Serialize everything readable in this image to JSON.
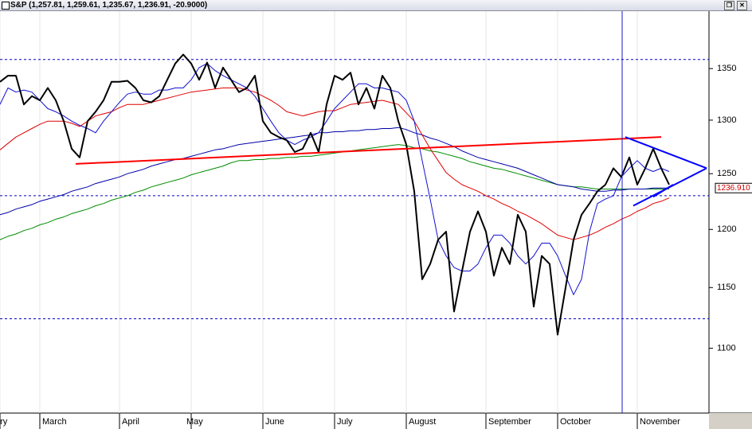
{
  "chart_data": {
    "type": "line",
    "title": "S&P (1,257.81, 1,259.61, 1,235.67, 1,236.91, -20.9000)",
    "log_scale": true,
    "ylim": [
      1049,
      1408
    ],
    "yticks": [
      1100,
      1150,
      1200,
      1250,
      1300,
      1350
    ],
    "grid": true,
    "categories": [
      "ary",
      null,
      null,
      null,
      null,
      "March",
      null,
      null,
      null,
      null,
      null,
      null,
      null,
      null,
      null,
      "April",
      null,
      null,
      null,
      null,
      null,
      null,
      null,
      null,
      "May",
      null,
      null,
      null,
      null,
      null,
      null,
      null,
      null,
      "June",
      null,
      null,
      null,
      null,
      null,
      null,
      null,
      null,
      "July",
      null,
      null,
      null,
      null,
      null,
      null,
      null,
      null,
      "August",
      null,
      null,
      null,
      null,
      null,
      null,
      null,
      null,
      null,
      "September",
      null,
      null,
      null,
      null,
      null,
      null,
      null,
      null,
      "October",
      null,
      null,
      null,
      null,
      null,
      null,
      null,
      null,
      null,
      "November",
      null,
      null,
      null,
      null,
      null,
      null,
      null,
      null,
      null
    ],
    "series": [
      {
        "color": "#008c00",
        "width": 1,
        "values": [
          1191,
          1194,
          1196,
          1199,
          1201,
          1204,
          1206,
          1209,
          1211,
          1214,
          1216,
          1218,
          1221,
          1223,
          1226,
          1228,
          1230,
          1233,
          1235,
          1238,
          1240,
          1242,
          1244,
          1246,
          1249,
          1251,
          1253,
          1255,
          1257,
          1260,
          1262,
          1262,
          1263,
          1263,
          1264,
          1264,
          1265,
          1265,
          1266,
          1266,
          1267,
          1268,
          1269,
          1270,
          1271,
          1272,
          1273,
          1274,
          1275,
          1276,
          1277,
          1276,
          1274,
          1273,
          1271,
          1270,
          1268,
          1266,
          1264,
          1261,
          1259,
          1257,
          1255,
          1254,
          1252,
          1250,
          1248,
          1246,
          1244,
          1242,
          1240,
          1239,
          1238,
          1238,
          1237,
          1236,
          1236,
          1236,
          1236,
          1236,
          1236,
          1236,
          1236,
          1236,
          1236,
          null,
          null,
          null,
          null,
          null
        ]
      },
      {
        "color": "#0000a8",
        "width": 1,
        "values": [
          1213,
          1215,
          1218,
          1220,
          1222,
          1225,
          1227,
          1229,
          1231,
          1234,
          1236,
          1238,
          1241,
          1243,
          1245,
          1247,
          1250,
          1252,
          1254,
          1257,
          1259,
          1261,
          1263,
          1264,
          1266,
          1268,
          1270,
          1272,
          1273,
          1275,
          1277,
          1278,
          1279,
          1280,
          1281,
          1282,
          1283,
          1284,
          1285,
          1286,
          1288,
          1288,
          1289,
          1289,
          1290,
          1290,
          1291,
          1291,
          1292,
          1292,
          1293,
          1291,
          1288,
          1286,
          1283,
          1281,
          1278,
          1275,
          1271,
          1268,
          1265,
          1263,
          1261,
          1259,
          1257,
          1255,
          1252,
          1249,
          1246,
          1243,
          1240,
          1239,
          1238,
          1236,
          1235,
          1234,
          1234,
          1235,
          1235,
          1236,
          1236,
          1236,
          1237,
          1237,
          1237,
          null,
          null,
          null,
          null,
          null
        ]
      },
      {
        "color": "#e00000",
        "width": 1,
        "values": [
          1272,
          1278,
          1284,
          1288,
          1292,
          1296,
          1299,
          1299,
          1299,
          1297,
          1294,
          1299,
          1304,
          1306,
          1308,
          1312,
          1315,
          1315,
          1315,
          1317,
          1319,
          1321,
          1323,
          1325,
          1327,
          1328,
          1329,
          1330,
          1331,
          1331,
          1331,
          1329,
          1327,
          1323,
          1319,
          1314,
          1308,
          1306,
          1304,
          1306,
          1308,
          1309,
          1309,
          1312,
          1315,
          1316,
          1317,
          1318,
          1319,
          1317,
          1315,
          1307,
          1299,
          1286,
          1273,
          1262,
          1251,
          1245,
          1240,
          1237,
          1234,
          1230,
          1227,
          1223,
          1220,
          1216,
          1213,
          1209,
          1205,
          1200,
          1195,
          1193,
          1191,
          1193,
          1195,
          1198,
          1202,
          1205,
          1209,
          1212,
          1216,
          1219,
          1223,
          1225,
          1228,
          null,
          null,
          null,
          null,
          null
        ]
      },
      {
        "color": "#1010d0",
        "width": 1,
        "values": [
          1315,
          1331,
          1327,
          1329,
          1327,
          1319,
          1311,
          1308,
          1304,
          1299,
          1295,
          1292,
          1288,
          1299,
          1308,
          1317,
          1325,
          1327,
          1325,
          1325,
          1329,
          1329,
          1331,
          1331,
          1339,
          1351,
          1355,
          1348,
          1343,
          1339,
          1335,
          1331,
          1323,
          1311,
          1299,
          1288,
          1281,
          1277,
          1281,
          1284,
          1288,
          1299,
          1311,
          1319,
          1327,
          1335,
          1335,
          1331,
          1331,
          1329,
          1327,
          1319,
          1299,
          1262,
          1227,
          1191,
          1177,
          1167,
          1164,
          1164,
          1170,
          1184,
          1195,
          1195,
          1188,
          1177,
          1170,
          1177,
          1188,
          1188,
          1177,
          1160,
          1144,
          1157,
          1198,
          1223,
          1227,
          1230,
          1247,
          1255,
          1262,
          1255,
          1252,
          1255,
          1252,
          null,
          null,
          null,
          null,
          null
        ]
      },
      {
        "color": "#000000",
        "width": 2,
        "values": [
          1337,
          1343,
          1343,
          1315,
          1323,
          1319,
          1331,
          1319,
          1299,
          1273,
          1265,
          1299,
          1308,
          1319,
          1337,
          1337,
          1338,
          1331,
          1319,
          1317,
          1323,
          1339,
          1355,
          1364,
          1355,
          1339,
          1356,
          1331,
          1351,
          1339,
          1327,
          1331,
          1343,
          1299,
          1288,
          1284,
          1281,
          1270,
          1273,
          1288,
          1270,
          1315,
          1343,
          1339,
          1346,
          1315,
          1331,
          1311,
          1343,
          1331,
          1299,
          1277,
          1234,
          1157,
          1170,
          1191,
          1198,
          1130,
          1164,
          1198,
          1216,
          1198,
          1160,
          1184,
          1170,
          1213,
          1198,
          1134,
          1177,
          1170,
          1111,
          1150,
          1191,
          1213,
          1223,
          1234,
          1240,
          1255,
          1247,
          1265,
          1240,
          1255,
          1273,
          1255,
          1240,
          null,
          null,
          null,
          null,
          null
        ]
      }
    ],
    "hlines": [
      1359,
      1230,
      1124
    ],
    "hline_color": "#0000c0",
    "trendlines": [
      {
        "color": "#ff0000",
        "points": [
          [
            9.5,
            1259
          ],
          [
            83,
            1284
          ]
        ]
      },
      {
        "color": "#0000ff",
        "points": [
          [
            78.5,
            1284
          ],
          [
            88.7,
            1255
          ]
        ]
      },
      {
        "color": "#0000ff",
        "points": [
          [
            79.5,
            1221
          ],
          [
            88.7,
            1255
          ]
        ]
      },
      {
        "color": "#0000ff",
        "points": [
          [
            82,
            1229
          ],
          [
            84.5,
            1240
          ]
        ]
      }
    ],
    "last_price": {
      "value": 1236.91,
      "label": "1236.910"
    }
  }
}
